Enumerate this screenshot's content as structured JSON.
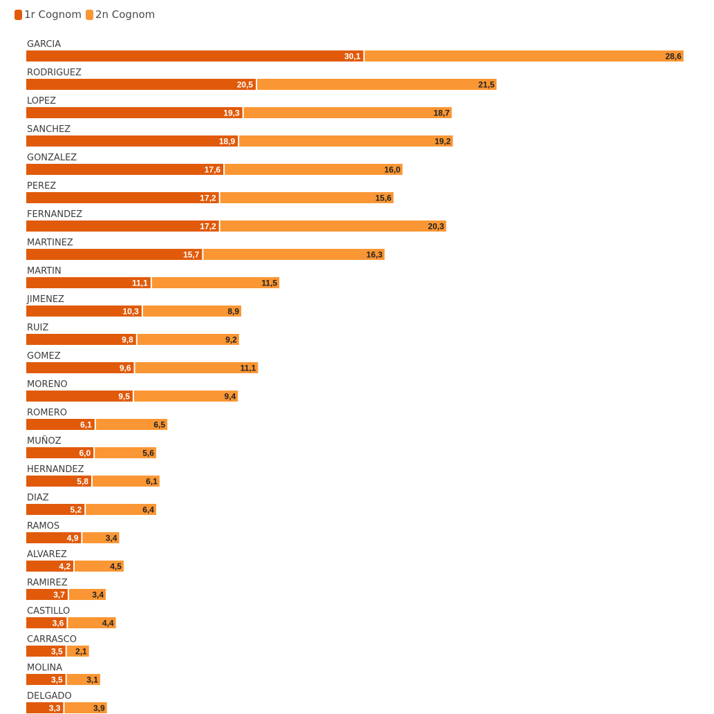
{
  "legend": {
    "first_label": "1r Cognom",
    "second_label": "2n Cognom"
  },
  "colors": {
    "first": "#e05a0a",
    "second": "#fa9633",
    "category_text": "#3c3c3c",
    "label_first": "#ffffff",
    "label_second": "#222222"
  },
  "chart_data": {
    "type": "bar",
    "orientation": "horizontal",
    "stacked": true,
    "title": "",
    "xlabel": "",
    "ylabel": "",
    "legend_position": "top-left",
    "grid": false,
    "categories": [
      "GARCIA",
      "RODRIGUEZ",
      "LOPEZ",
      "SANCHEZ",
      "GONZALEZ",
      "PEREZ",
      "FERNANDEZ",
      "MARTINEZ",
      "MARTIN",
      "JIMENEZ",
      "RUIZ",
      "GOMEZ",
      "MORENO",
      "ROMERO",
      "MUÑOZ",
      "HERNANDEZ",
      "DIAZ",
      "RAMOS",
      "ALVAREZ",
      "RAMIREZ",
      "CASTILLO",
      "CARRASCO",
      "MOLINA",
      "DELGADO"
    ],
    "series": [
      {
        "name": "1r Cognom",
        "values": [
          30.1,
          20.5,
          19.3,
          18.9,
          17.6,
          17.2,
          17.2,
          15.7,
          11.1,
          10.3,
          9.8,
          9.6,
          9.5,
          6.1,
          6.0,
          5.8,
          5.2,
          4.9,
          4.2,
          3.7,
          3.6,
          3.5,
          3.5,
          3.3
        ],
        "labels": [
          "30,1",
          "20,5",
          "19,3",
          "18,9",
          "17,6",
          "17,2",
          "17,2",
          "15,7",
          "11,1",
          "10,3",
          "9,8",
          "9,6",
          "9,5",
          "6,1",
          "6,0",
          "5,8",
          "5,2",
          "4,9",
          "4,2",
          "3,7",
          "3,6",
          "3,5",
          "3,5",
          "3,3"
        ]
      },
      {
        "name": "2n Cognom",
        "values": [
          28.6,
          21.5,
          18.7,
          19.2,
          16.0,
          15.6,
          20.3,
          16.3,
          11.5,
          8.9,
          9.2,
          11.1,
          9.4,
          6.5,
          5.6,
          6.1,
          6.4,
          3.4,
          4.5,
          3.4,
          4.4,
          2.1,
          3.1,
          3.9
        ],
        "labels": [
          "28,6",
          "21,5",
          "18,7",
          "19,2",
          "16,0",
          "15,6",
          "20,3",
          "16,3",
          "11,5",
          "8,9",
          "9,2",
          "11,1",
          "9,4",
          "6,5",
          "5,6",
          "6,1",
          "6,4",
          "3,4",
          "4,5",
          "3,4",
          "4,4",
          "2,1",
          "3,1",
          "3,9"
        ]
      }
    ]
  }
}
